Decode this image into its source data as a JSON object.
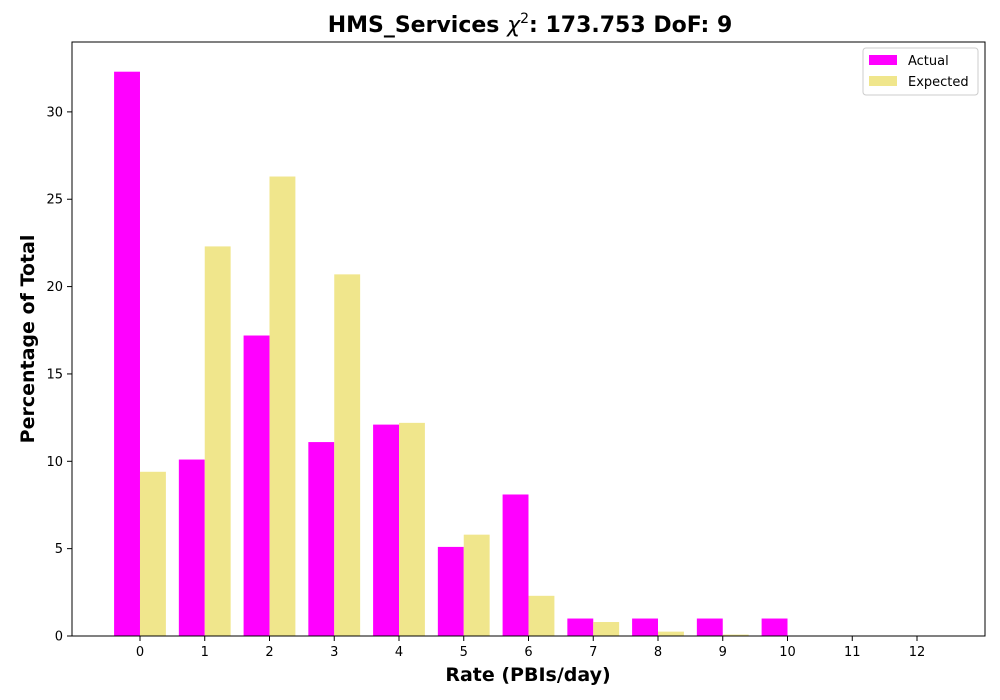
{
  "chart_data": {
    "type": "bar",
    "title_prefix": "HMS_Services ",
    "title_chi": "χ",
    "title_sup": "2",
    "title_suffix": ": 173.753 DoF: 9",
    "xlabel": "Rate (PBIs/day)",
    "ylabel": "Percentage of Total",
    "categories": [
      "0",
      "1",
      "2",
      "3",
      "4",
      "5",
      "6",
      "7",
      "8",
      "9",
      "10",
      "11",
      "12"
    ],
    "x": [
      0,
      1,
      2,
      3,
      4,
      5,
      6,
      7,
      8,
      9,
      10,
      11,
      12
    ],
    "xlim": [
      -1.05,
      13.05
    ],
    "ylim": [
      0,
      34
    ],
    "yticks": [
      0,
      5,
      10,
      15,
      20,
      25,
      30
    ],
    "ytick_labels": [
      "0",
      "5",
      "10",
      "15",
      "20",
      "25",
      "30"
    ],
    "grid": false,
    "legend_position": "top-right",
    "series": [
      {
        "name": "Actual",
        "color": "#ff00ff",
        "values": [
          32.3,
          10.1,
          17.2,
          11.1,
          12.1,
          5.1,
          8.1,
          1.0,
          1.0,
          1.0,
          1.0,
          0,
          0
        ]
      },
      {
        "name": "Expected",
        "color": "#f0e68c",
        "values": [
          9.4,
          22.3,
          26.3,
          20.7,
          12.2,
          5.8,
          2.3,
          0.8,
          0.25,
          0.08,
          0.02,
          0,
          0
        ]
      }
    ]
  }
}
